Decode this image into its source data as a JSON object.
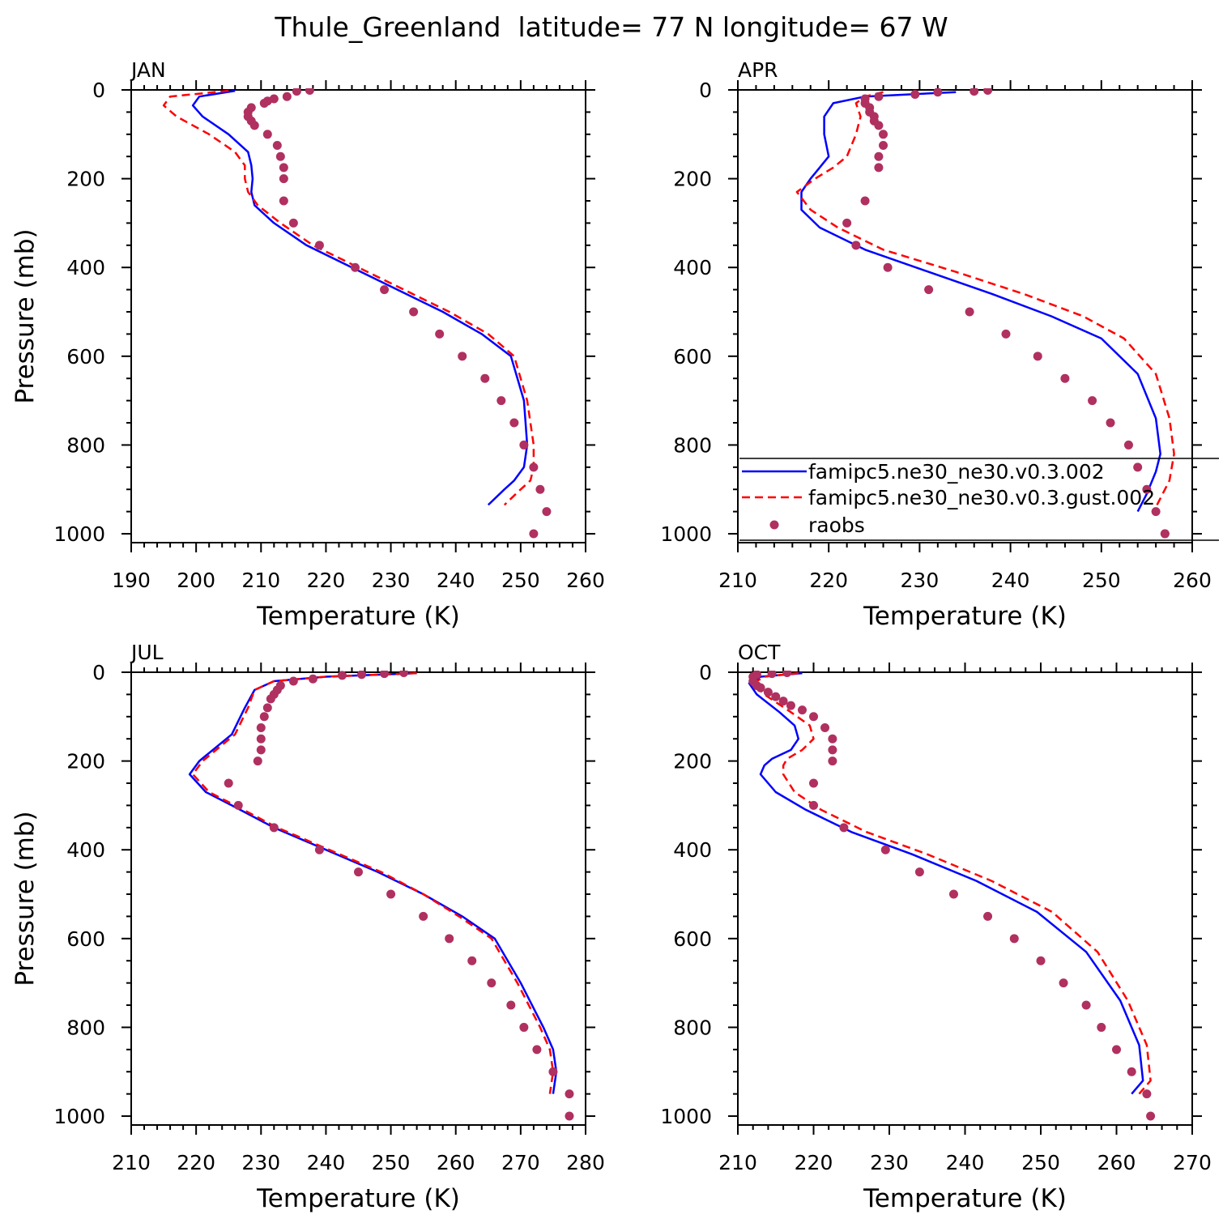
{
  "title": "Thule_Greenland  latitude= 77 N longitude= 67 W",
  "colors": {
    "model": "#0000ff",
    "gust": "#ff0000",
    "raobs": "#b03060",
    "axis": "#000000"
  },
  "legend": {
    "placement": "inside APR panel, lower",
    "entries": [
      {
        "label": "famipc5.ne30_ne30.v0.3.002",
        "style": "solid",
        "color": "#0000ff"
      },
      {
        "label": "famipc5.ne30_ne30.v0.3.gust.002",
        "style": "dashed",
        "color": "#ff0000"
      },
      {
        "label": "raobs",
        "style": "marker",
        "color": "#b03060"
      }
    ]
  },
  "chart_data": [
    {
      "type": "line",
      "title": "JAN",
      "xlabel": "Temperature (K)",
      "ylabel": "Pressure (mb)",
      "xlim": [
        190,
        260
      ],
      "ylim": [
        1020,
        0
      ],
      "xticks": [
        190,
        200,
        210,
        220,
        230,
        240,
        250,
        260
      ],
      "yticks": [
        0,
        200,
        400,
        600,
        800,
        1000
      ],
      "series": [
        {
          "name": "famipc5.ne30_ne30.v0.3.002",
          "style": "solid",
          "x": [
            206.0,
            200.5,
            199.5,
            201.0,
            205.0,
            208.0,
            208.5,
            208.7,
            208.5,
            209.0,
            212.0,
            217.0,
            224.0,
            231.0,
            238.0,
            244.0,
            248.5,
            250.5,
            251.0,
            250.5,
            249.0,
            247.5,
            245.0
          ],
          "y": [
            2,
            15,
            35,
            60,
            100,
            140,
            170,
            200,
            230,
            260,
            300,
            350,
            400,
            450,
            500,
            550,
            600,
            700,
            800,
            850,
            880,
            900,
            935
          ]
        },
        {
          "name": "famipc5.ne30_ne30.v0.3.gust.002",
          "style": "dashed",
          "x": [
            205.0,
            196.0,
            195.0,
            197.0,
            202.0,
            206.0,
            207.5,
            207.5,
            208.0,
            209.5,
            213.0,
            218.0,
            225.0,
            232.0,
            239.0,
            245.0,
            249.0,
            251.0,
            252.0,
            252.0,
            251.5,
            250.0,
            247.5
          ],
          "y": [
            2,
            15,
            35,
            60,
            100,
            140,
            170,
            200,
            230,
            260,
            300,
            350,
            400,
            450,
            500,
            550,
            600,
            700,
            800,
            850,
            880,
            900,
            935
          ]
        },
        {
          "name": "raobs",
          "style": "marker",
          "x": [
            217.5,
            215.5,
            214.0,
            212.0,
            211.0,
            210.5,
            208.5,
            208.0,
            208.0,
            208.5,
            209.0,
            211.0,
            212.5,
            213.0,
            213.5,
            213.5,
            213.5,
            215.0,
            219.0,
            224.5,
            229.0,
            233.5,
            237.5,
            241.0,
            244.5,
            247.0,
            249.0,
            250.5,
            252.0,
            253.0,
            254.0,
            252.0
          ],
          "y": [
            1,
            3,
            15,
            20,
            25,
            30,
            40,
            50,
            60,
            70,
            80,
            100,
            125,
            150,
            175,
            200,
            250,
            300,
            350,
            400,
            450,
            500,
            550,
            600,
            650,
            700,
            750,
            800,
            850,
            900,
            950,
            1000
          ]
        }
      ]
    },
    {
      "type": "line",
      "title": "APR",
      "xlabel": "Temperature (K)",
      "ylabel": "",
      "xlim": [
        210,
        260
      ],
      "ylim": [
        1020,
        0
      ],
      "xticks": [
        210,
        220,
        230,
        240,
        250,
        260
      ],
      "yticks": [
        0,
        200,
        400,
        600,
        800,
        1000
      ],
      "series": [
        {
          "name": "famipc5.ne30_ne30.v0.3.002",
          "style": "solid",
          "x": [
            234.0,
            224.0,
            220.5,
            219.5,
            219.5,
            220.0,
            219.0,
            218.0,
            217.0,
            217.0,
            219.0,
            224.0,
            231.0,
            238.0,
            244.5,
            250.0,
            254.0,
            256.0,
            256.5,
            256.0,
            255.0,
            254.0
          ],
          "y": [
            5,
            15,
            30,
            60,
            100,
            150,
            175,
            200,
            230,
            270,
            310,
            360,
            410,
            460,
            510,
            560,
            640,
            740,
            820,
            860,
            910,
            950
          ]
        },
        {
          "name": "famipc5.ne30_ne30.v0.3.gust.002",
          "style": "dashed",
          "x": [
            226.0,
            224.0,
            223.0,
            223.5,
            223.0,
            222.0,
            220.5,
            218.5,
            216.5,
            218.0,
            221.0,
            226.0,
            234.0,
            241.5,
            248.0,
            252.5,
            256.0,
            257.5,
            258.0,
            257.5,
            256.0
          ],
          "y": [
            5,
            15,
            30,
            60,
            100,
            150,
            175,
            200,
            230,
            270,
            310,
            360,
            410,
            460,
            510,
            560,
            640,
            740,
            820,
            880,
            940
          ]
        },
        {
          "name": "raobs",
          "style": "marker",
          "x": [
            237.5,
            236.0,
            232.0,
            229.5,
            225.5,
            224.0,
            224.0,
            224.5,
            224.5,
            225.0,
            225.0,
            225.5,
            226.0,
            226.0,
            225.5,
            225.5,
            224.0,
            222.0,
            223.0,
            226.5,
            231.0,
            235.5,
            239.5,
            243.0,
            246.0,
            249.0,
            251.0,
            253.0,
            254.0,
            255.0,
            256.0,
            257.0,
            257.0
          ],
          "y": [
            1,
            3,
            5,
            10,
            15,
            20,
            30,
            40,
            50,
            60,
            70,
            80,
            100,
            125,
            150,
            175,
            250,
            300,
            350,
            400,
            450,
            500,
            550,
            600,
            650,
            700,
            750,
            800,
            850,
            900,
            950,
            1000,
            1000
          ]
        }
      ]
    },
    {
      "type": "line",
      "title": "JUL",
      "xlabel": "Temperature (K)",
      "ylabel": "Pressure (mb)",
      "xlim": [
        210,
        280
      ],
      "ylim": [
        1020,
        0
      ],
      "xticks": [
        210,
        220,
        230,
        240,
        250,
        260,
        270,
        280
      ],
      "yticks": [
        0,
        200,
        400,
        600,
        800,
        1000
      ],
      "series": [
        {
          "name": "famipc5.ne30_ne30.v0.3.002",
          "style": "solid",
          "x": [
            254.0,
            240.0,
            232.0,
            229.0,
            227.5,
            226.5,
            225.5,
            220.5,
            219.0,
            221.5,
            225.5,
            232.0,
            240.0,
            248.0,
            255.0,
            261.0,
            266.0,
            270.0,
            273.5,
            275.0,
            275.5,
            275.0
          ],
          "y": [
            2,
            10,
            20,
            40,
            80,
            110,
            140,
            200,
            230,
            270,
            300,
            350,
            400,
            450,
            500,
            550,
            600,
            700,
            800,
            850,
            900,
            950
          ]
        },
        {
          "name": "famipc5.ne30_ne30.v0.3.gust.002",
          "style": "dashed",
          "x": [
            254.0,
            240.0,
            232.0,
            229.0,
            228.0,
            227.0,
            226.0,
            221.0,
            219.5,
            222.0,
            226.0,
            232.5,
            240.5,
            248.5,
            255.0,
            260.5,
            265.5,
            269.5,
            273.0,
            274.5,
            275.0,
            274.5
          ],
          "y": [
            2,
            10,
            20,
            40,
            80,
            110,
            140,
            200,
            230,
            270,
            300,
            350,
            400,
            450,
            500,
            550,
            600,
            700,
            800,
            850,
            900,
            950
          ]
        },
        {
          "name": "raobs",
          "style": "marker",
          "x": [
            252.0,
            249.0,
            245.5,
            242.5,
            238.0,
            235.0,
            233.0,
            232.5,
            232.0,
            231.5,
            231.0,
            230.5,
            230.0,
            230.0,
            230.0,
            229.5,
            225.0,
            226.5,
            232.0,
            239.0,
            245.0,
            250.0,
            255.0,
            259.0,
            262.5,
            265.5,
            268.5,
            270.5,
            272.5,
            275.0,
            277.5,
            277.5
          ],
          "y": [
            1,
            3,
            5,
            7,
            15,
            20,
            30,
            40,
            50,
            60,
            80,
            100,
            125,
            150,
            175,
            200,
            250,
            300,
            350,
            400,
            450,
            500,
            550,
            600,
            650,
            700,
            750,
            800,
            850,
            900,
            950,
            1000
          ]
        }
      ]
    },
    {
      "type": "line",
      "title": "OCT",
      "xlabel": "Temperature (K)",
      "ylabel": "",
      "xlim": [
        210,
        270
      ],
      "ylim": [
        1020,
        0
      ],
      "xticks": [
        210,
        220,
        230,
        240,
        250,
        260,
        270
      ],
      "yticks": [
        0,
        200,
        400,
        600,
        800,
        1000
      ],
      "series": [
        {
          "name": "famipc5.ne30_ne30.v0.3.002",
          "style": "solid",
          "x": [
            218.5,
            213.0,
            211.5,
            212.5,
            215.5,
            217.5,
            218.0,
            217.0,
            214.5,
            213.5,
            213.0,
            215.0,
            219.0,
            225.0,
            233.0,
            241.5,
            249.5,
            256.0,
            260.5,
            263.0,
            263.5,
            262.0
          ],
          "y": [
            2,
            10,
            25,
            50,
            90,
            120,
            150,
            175,
            195,
            210,
            230,
            270,
            310,
            360,
            410,
            470,
            540,
            630,
            740,
            840,
            920,
            950
          ]
        },
        {
          "name": "famipc5.ne30_ne30.v0.3.gust.002",
          "style": "dashed",
          "x": [
            218.0,
            213.5,
            212.0,
            213.5,
            217.0,
            219.5,
            220.0,
            218.5,
            216.5,
            216.0,
            216.0,
            217.5,
            221.0,
            227.0,
            235.0,
            243.5,
            251.5,
            257.5,
            261.5,
            264.0,
            264.5,
            263.0
          ],
          "y": [
            2,
            10,
            25,
            50,
            90,
            120,
            150,
            175,
            195,
            210,
            230,
            270,
            310,
            360,
            410,
            470,
            540,
            630,
            740,
            840,
            920,
            950
          ]
        },
        {
          "name": "raobs",
          "style": "marker",
          "x": [
            216.5,
            214.5,
            212.5,
            212.0,
            212.0,
            212.5,
            213.0,
            214.0,
            215.0,
            216.0,
            217.0,
            218.5,
            220.0,
            221.5,
            222.5,
            222.5,
            222.5,
            220.0,
            220.0,
            224.0,
            229.5,
            234.0,
            238.5,
            243.0,
            246.5,
            250.0,
            253.0,
            256.0,
            258.0,
            260.0,
            262.0,
            264.0,
            264.5
          ],
          "y": [
            1,
            3,
            5,
            10,
            20,
            30,
            35,
            45,
            55,
            65,
            75,
            85,
            100,
            125,
            150,
            175,
            200,
            250,
            300,
            350,
            400,
            450,
            500,
            550,
            600,
            650,
            700,
            750,
            800,
            850,
            900,
            950,
            1000
          ]
        }
      ]
    }
  ]
}
